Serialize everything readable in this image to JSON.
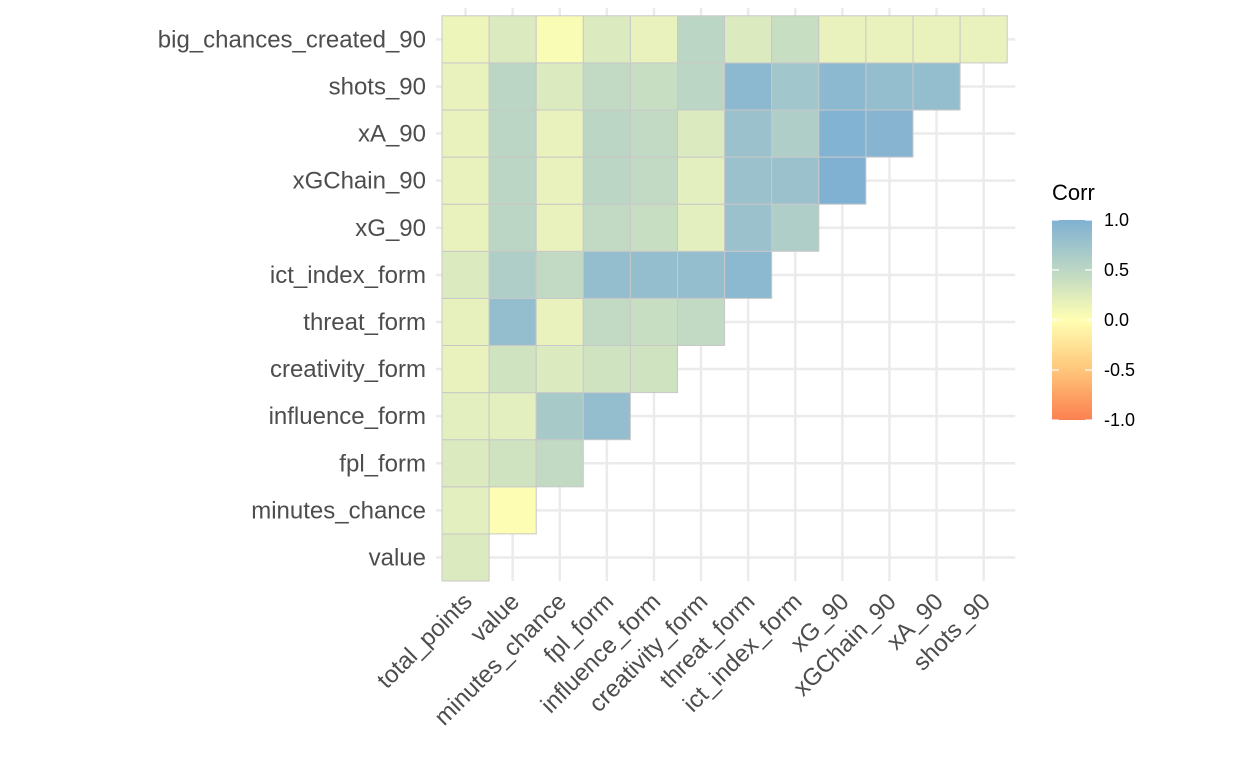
{
  "chart_data": {
    "type": "heatmap",
    "x_labels": [
      "total_points",
      "value",
      "minutes_chance",
      "fpl_form",
      "influence_form",
      "creativity_form",
      "threat_form",
      "ict_index_form",
      "xG_90",
      "xGChain_90",
      "xA_90",
      "shots_90"
    ],
    "y_labels": [
      "value",
      "minutes_chance",
      "fpl_form",
      "influence_form",
      "creativity_form",
      "threat_form",
      "ict_index_form",
      "xG_90",
      "xGChain_90",
      "xA_90",
      "shots_90",
      "big_chances_created_90"
    ],
    "values": [
      [
        0.3
      ],
      [
        0.25,
        0.02
      ],
      [
        0.3,
        0.4,
        0.5
      ],
      [
        0.25,
        0.25,
        0.7,
        0.85
      ],
      [
        0.2,
        0.4,
        0.3,
        0.4,
        0.4
      ],
      [
        0.22,
        0.85,
        0.2,
        0.5,
        0.45,
        0.5
      ],
      [
        0.3,
        0.65,
        0.5,
        0.85,
        0.85,
        0.85,
        0.9
      ],
      [
        0.2,
        0.55,
        0.2,
        0.5,
        0.45,
        0.25,
        0.8,
        0.65
      ],
      [
        0.2,
        0.55,
        0.2,
        0.55,
        0.5,
        0.25,
        0.8,
        0.8,
        1.0
      ],
      [
        0.2,
        0.55,
        0.2,
        0.55,
        0.5,
        0.3,
        0.8,
        0.65,
        0.98,
        0.95
      ],
      [
        0.2,
        0.55,
        0.3,
        0.5,
        0.45,
        0.55,
        0.9,
        0.75,
        0.9,
        0.85,
        0.85
      ],
      [
        0.15,
        0.3,
        0.05,
        0.3,
        0.2,
        0.55,
        0.3,
        0.45,
        0.2,
        0.2,
        0.2,
        0.2
      ]
    ],
    "legend": {
      "title": "Corr",
      "ticks": [
        "1.0",
        "0.5",
        "0.0",
        "-0.5",
        "-1.0"
      ],
      "range": [
        -1.0,
        1.0
      ],
      "placement": "right"
    },
    "colors": {
      "high": "#80b1d3",
      "mid_high": "#bbd6c4",
      "mid_low": "#e3efbe",
      "zero": "#ffffb3",
      "neg_mid": "#ffc67a",
      "low": "#fb8050"
    },
    "grid": true
  }
}
